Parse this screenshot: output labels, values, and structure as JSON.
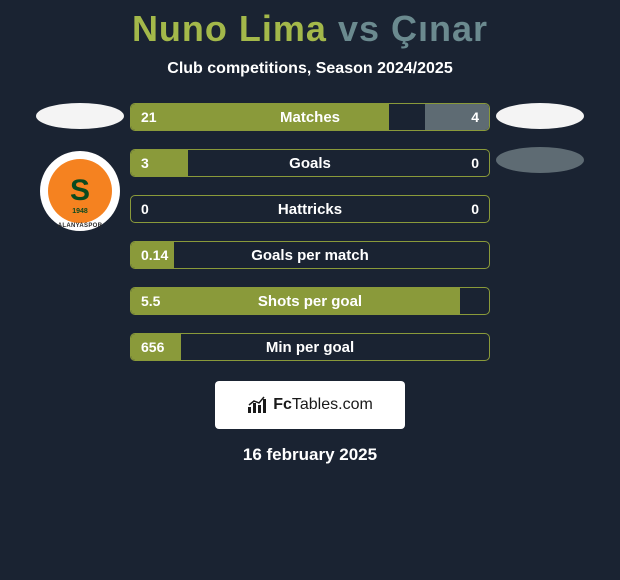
{
  "background_color": "#1a2332",
  "title": {
    "player1": "Nuno Lima",
    "vs": "vs",
    "player2": "Çınar",
    "player1_color": "#a3b84a",
    "vs_color": "#6b8a8f",
    "player2_color": "#6b8a8f",
    "fontsize": 36
  },
  "subtitle": "Club competitions, Season 2024/2025",
  "club_badge": {
    "letter": "S",
    "year": "1948",
    "bottom_text": "ALANYASPOR",
    "outer_ring_color": "#0a7a3a",
    "inner_color": "#f58220"
  },
  "side_blobs": {
    "left_color": "#f4f4f4",
    "right_top_color": "#f4f4f4",
    "right_bottom_color": "#5e6b73"
  },
  "bars": {
    "border_color": "#8a9a3a",
    "left_fill_color": "#8a9a3a",
    "right_fill_color": "#5e6b73",
    "text_color": "#ffffff",
    "rows": [
      {
        "label": "Matches",
        "left": "21",
        "right": "4",
        "left_pct": 72,
        "right_pct": 18
      },
      {
        "label": "Goals",
        "left": "3",
        "right": "0",
        "left_pct": 16,
        "right_pct": 0
      },
      {
        "label": "Hattricks",
        "left": "0",
        "right": "0",
        "left_pct": 0,
        "right_pct": 0
      },
      {
        "label": "Goals per match",
        "left": "0.14",
        "right": "",
        "left_pct": 12,
        "right_pct": 0
      },
      {
        "label": "Shots per goal",
        "left": "5.5",
        "right": "",
        "left_pct": 92,
        "right_pct": 0
      },
      {
        "label": "Min per goal",
        "left": "656",
        "right": "",
        "left_pct": 14,
        "right_pct": 0
      }
    ]
  },
  "brand": {
    "prefix": "Fc",
    "suffix": "Tables.com"
  },
  "date": "16 february 2025"
}
